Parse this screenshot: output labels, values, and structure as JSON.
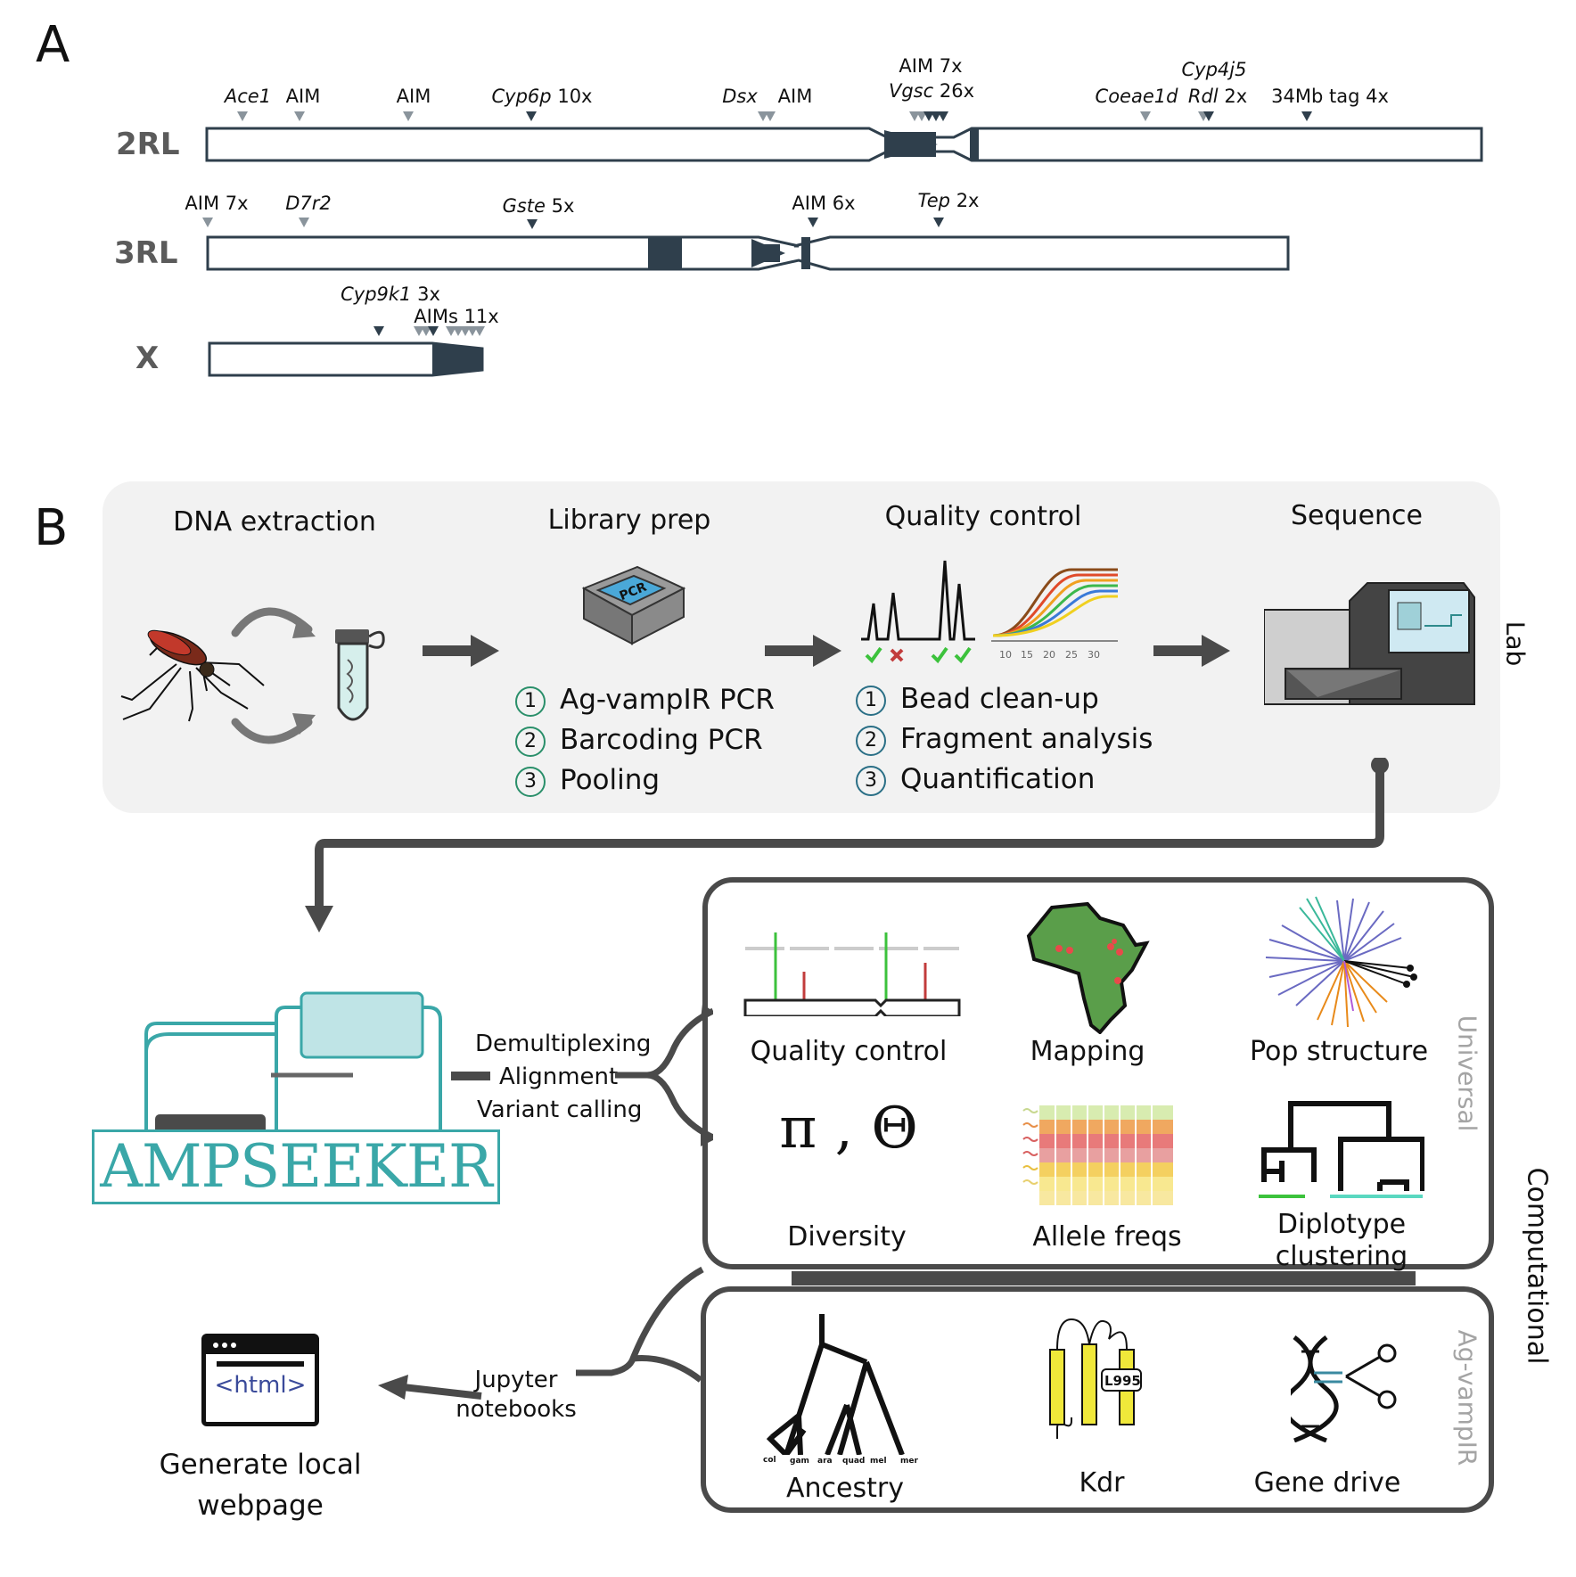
{
  "panel_a": {
    "letter": "A",
    "chromosomes": [
      {
        "name": "2RL",
        "markers": [
          {
            "label": "Ace1",
            "italic": true
          },
          {
            "label": "AIM",
            "italic": false
          },
          {
            "label": "AIM",
            "italic": false
          },
          {
            "label": "Cyp6p",
            "italic": true,
            "count": "10x"
          },
          {
            "label": "Dsx",
            "italic": true
          },
          {
            "label": "AIM",
            "italic": false
          },
          {
            "label": "AIM 7x",
            "italic": false
          },
          {
            "label": "Vgsc",
            "italic": true,
            "count": "26x"
          },
          {
            "label": "Coeae1d",
            "italic": true
          },
          {
            "label": "Cyp4j5",
            "italic": true
          },
          {
            "label": "Rdl",
            "italic": true,
            "count": "2x"
          },
          {
            "label": "34Mb tag 4x",
            "italic": false
          }
        ]
      },
      {
        "name": "3RL",
        "markers": [
          {
            "label": "AIM 7x",
            "italic": false
          },
          {
            "label": "D7r2",
            "italic": true
          },
          {
            "label": "Gste",
            "italic": true,
            "count": "5x"
          },
          {
            "label": "AIM 6x",
            "italic": false
          },
          {
            "label": "Tep",
            "italic": true,
            "count": "2x"
          }
        ]
      },
      {
        "name": "X",
        "markers": [
          {
            "label": "Cyp9k1",
            "italic": true,
            "count": "3x"
          },
          {
            "label": "AIMs 11x",
            "italic": false
          }
        ]
      }
    ]
  },
  "panel_b": {
    "letter": "B",
    "lab": {
      "side_label": "Lab",
      "steps": [
        {
          "title": "DNA extraction"
        },
        {
          "title": "Library prep",
          "icon_text": "PCR",
          "items": [
            "Ag-vampIR PCR",
            "Barcoding PCR",
            "Pooling"
          ]
        },
        {
          "title": "Quality control",
          "axis_ticks": [
            "10",
            "15",
            "20",
            "25",
            "30"
          ],
          "items": [
            "Bead clean-up",
            "Fragment analysis",
            "Quantification"
          ]
        },
        {
          "title": "Sequence"
        }
      ],
      "item_numbers": [
        "1",
        "2",
        "3"
      ]
    },
    "pipeline": {
      "logo": "AMPSEEKER",
      "steps": [
        "Demultiplexing",
        "Alignment",
        "Variant calling"
      ],
      "notebooks": "Jupyter notebooks",
      "notebooks_line1": "Jupyter",
      "notebooks_line2": "notebooks",
      "webpage_icon": "<html>",
      "webpage_line1": "Generate local",
      "webpage_line2": "webpage"
    },
    "computational": {
      "side_label": "Computational",
      "universal": {
        "label": "Universal",
        "analyses": [
          "Quality control",
          "Mapping",
          "Pop structure",
          "Diversity",
          "Allele freqs",
          "Diplotype clustering"
        ],
        "diversity_symbols": "π , Θ",
        "diplotype_line1": "Diplotype",
        "diplotype_line2": "clustering"
      },
      "agvampir": {
        "label": "Ag-vampIR",
        "analyses": [
          "Ancestry",
          "Kdr",
          "Gene drive"
        ],
        "ancestry_leaves": [
          "col",
          "gam",
          "ara",
          "quad",
          "mel",
          "mer"
        ],
        "kdr_mutation": "L995"
      }
    }
  },
  "colors": {
    "chromosome": "#2f3f4c",
    "lab_bg": "#f2f2f2",
    "arrow": "#4a4a4a",
    "teal": "#3aa7a8",
    "green_num": "#2a8f6a",
    "blue_num": "#2a6f86"
  }
}
